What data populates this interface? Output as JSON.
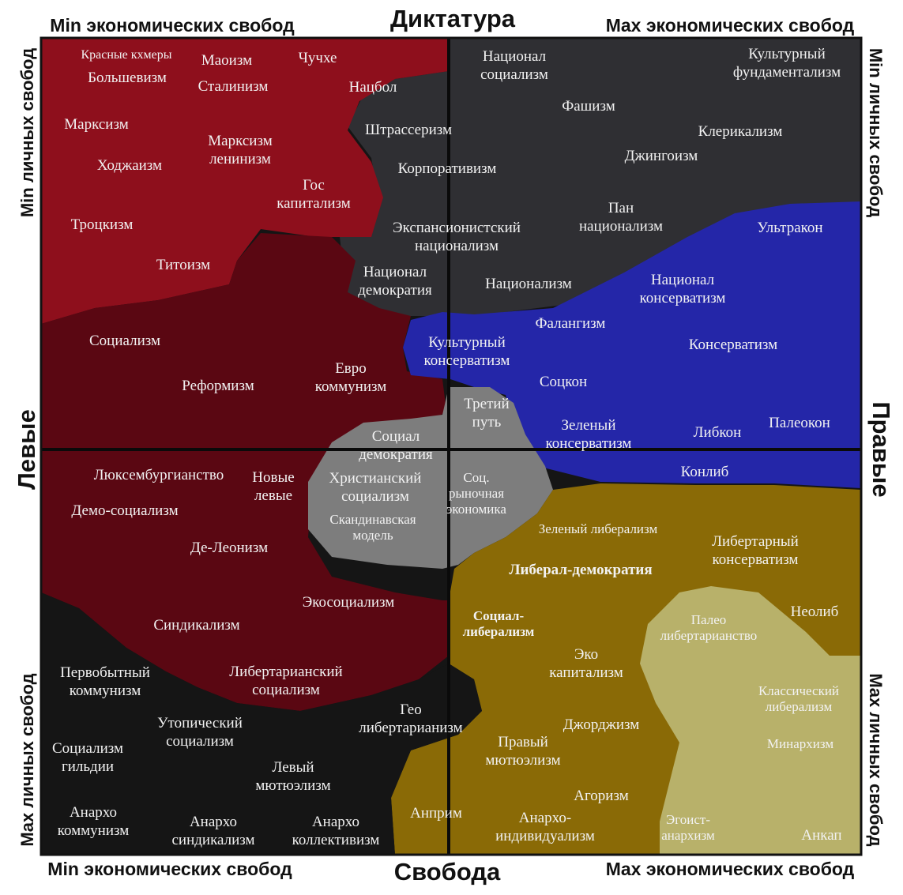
{
  "title_top": "Диктатура",
  "title_bottom": "Свобода",
  "side_left": "Левые",
  "side_right": "Правые",
  "corner_top_left": "Min экономических свобод",
  "corner_top_right": "Max экономических свобод",
  "corner_bottom_left": "Min экономических свобод",
  "corner_bottom_right": "Max экономических свобод",
  "vertical_left_top": "Min личных свобод",
  "vertical_left_bottom": "Max личных свобод",
  "vertical_right_top": "Min личных свобод",
  "vertical_right_bottom": "Max личных свобод",
  "colors": {
    "red": "#8e0f1c",
    "dark_red": "#5a0712",
    "charcoal": "#2f2f33",
    "blue": "#2426a8",
    "gray": "#7d7d7d",
    "olive": "#8a6a06",
    "khaki": "#b8b16a",
    "black": "#151515"
  },
  "ideologies": [
    {
      "id": "khmer-rouge",
      "region": "red",
      "lines": [
        "Красные кхмеры"
      ]
    },
    {
      "id": "maoism",
      "region": "red",
      "lines": [
        "Маоизм"
      ]
    },
    {
      "id": "juche",
      "region": "red",
      "lines": [
        "Чучхе"
      ]
    },
    {
      "id": "bolshevism",
      "region": "red",
      "lines": [
        "Большевизм"
      ]
    },
    {
      "id": "stalinism",
      "region": "red",
      "lines": [
        "Сталинизм"
      ]
    },
    {
      "id": "natsbol",
      "region": "red",
      "lines": [
        "Нацбол"
      ]
    },
    {
      "id": "marxism",
      "region": "red",
      "lines": [
        "Марксизм"
      ]
    },
    {
      "id": "marxism-leninism",
      "region": "red",
      "lines": [
        "Марксизм",
        "ленинизм"
      ]
    },
    {
      "id": "hoxhaism",
      "region": "red",
      "lines": [
        "Ходжаизм"
      ]
    },
    {
      "id": "state-capitalism",
      "region": "red",
      "lines": [
        "Гос",
        "капитализм"
      ]
    },
    {
      "id": "trotskyism",
      "region": "red",
      "lines": [
        "Троцкизм"
      ]
    },
    {
      "id": "titoism",
      "region": "red",
      "lines": [
        "Титоизм"
      ]
    },
    {
      "id": "national-socialism",
      "region": "charcoal",
      "lines": [
        "Национал",
        "социализм"
      ]
    },
    {
      "id": "cultural-fundamentalism",
      "region": "charcoal",
      "lines": [
        "Культурный",
        "фундаментализм"
      ]
    },
    {
      "id": "fascism",
      "region": "charcoal",
      "lines": [
        "Фашизм"
      ]
    },
    {
      "id": "strasserism",
      "region": "charcoal",
      "lines": [
        "Штрассеризм"
      ]
    },
    {
      "id": "clericalism",
      "region": "charcoal",
      "lines": [
        "Клерикализм"
      ]
    },
    {
      "id": "jingoism",
      "region": "charcoal",
      "lines": [
        "Джингоизм"
      ]
    },
    {
      "id": "corporatism",
      "region": "charcoal",
      "lines": [
        "Корпоративизм"
      ]
    },
    {
      "id": "pan-nationalism",
      "region": "charcoal",
      "lines": [
        "Пан",
        "национализм"
      ]
    },
    {
      "id": "expansionist-nationalism",
      "region": "charcoal",
      "lines": [
        "Экспансионистский",
        "национализм"
      ]
    },
    {
      "id": "ultracon",
      "region": "blue",
      "lines": [
        "Ультракон"
      ]
    },
    {
      "id": "national-democracy",
      "region": "charcoal",
      "lines": [
        "Национал",
        "демократия"
      ]
    },
    {
      "id": "nationalism",
      "region": "charcoal",
      "lines": [
        "Национализм"
      ]
    },
    {
      "id": "national-conservatism",
      "region": "blue",
      "lines": [
        "Национал",
        "консерватизм"
      ]
    },
    {
      "id": "falangism",
      "region": "blue",
      "lines": [
        "Фалангизм"
      ]
    },
    {
      "id": "socialism",
      "region": "dark_red",
      "lines": [
        "Социализм"
      ]
    },
    {
      "id": "cultural-conservatism",
      "region": "blue",
      "lines": [
        "Культурный",
        "консерватизм"
      ]
    },
    {
      "id": "conservatism",
      "region": "blue",
      "lines": [
        "Консерватизм"
      ]
    },
    {
      "id": "reformism",
      "region": "dark_red",
      "lines": [
        "Реформизм"
      ]
    },
    {
      "id": "eurocommunism",
      "region": "dark_red",
      "lines": [
        "Евро",
        "коммунизм"
      ]
    },
    {
      "id": "socon",
      "region": "blue",
      "lines": [
        "Соцкон"
      ]
    },
    {
      "id": "third-way",
      "region": "gray",
      "lines": [
        "Третий",
        "путь"
      ]
    },
    {
      "id": "green-conservatism",
      "region": "blue",
      "lines": [
        "Зеленый",
        "консерватизм"
      ]
    },
    {
      "id": "libcon",
      "region": "blue",
      "lines": [
        "Либкон"
      ]
    },
    {
      "id": "paleocon",
      "region": "blue",
      "lines": [
        "Палеокон"
      ]
    },
    {
      "id": "social-democracy",
      "region": "gray",
      "lines": [
        "Социал",
        "демократия"
      ]
    },
    {
      "id": "conlib",
      "region": "blue",
      "lines": [
        "Конлиб"
      ]
    },
    {
      "id": "luxemburgism",
      "region": "dark_red",
      "lines": [
        "Люксембургианство"
      ]
    },
    {
      "id": "new-left",
      "region": "dark_red",
      "lines": [
        "Новые",
        "левые"
      ]
    },
    {
      "id": "christian-socialism",
      "region": "gray",
      "lines": [
        "Христианский",
        "социализм"
      ]
    },
    {
      "id": "social-market-economy",
      "region": "gray",
      "lines": [
        "Соц.",
        "рыночная",
        "экономика"
      ]
    },
    {
      "id": "demo-socialism",
      "region": "dark_red",
      "lines": [
        "Демо-социализм"
      ]
    },
    {
      "id": "nordic-model",
      "region": "gray",
      "lines": [
        "Скандинавская",
        "модель"
      ]
    },
    {
      "id": "green-liberalism",
      "region": "olive",
      "lines": [
        "Зеленый либерализм"
      ]
    },
    {
      "id": "de-leonism",
      "region": "dark_red",
      "lines": [
        "Де-Леонизм"
      ]
    },
    {
      "id": "libertarian-conservatism",
      "region": "olive",
      "lines": [
        "Либертарный",
        "консерватизм"
      ]
    },
    {
      "id": "liberal-democracy",
      "region": "olive",
      "lines": [
        "Либерал-демократия"
      ]
    },
    {
      "id": "ecosocialism",
      "region": "dark_red",
      "lines": [
        "Экосоциализм"
      ]
    },
    {
      "id": "neolib",
      "region": "olive",
      "lines": [
        "Неолиб"
      ]
    },
    {
      "id": "social-liberalism",
      "region": "olive",
      "lines": [
        "Социал-",
        "либерализм"
      ]
    },
    {
      "id": "paleo-libertarianism",
      "region": "khaki",
      "lines": [
        "Палео",
        "либертарианство"
      ]
    },
    {
      "id": "syndicalism",
      "region": "dark_red",
      "lines": [
        "Синдикализм"
      ]
    },
    {
      "id": "eco-capitalism",
      "region": "olive",
      "lines": [
        "Эко",
        "капитализм"
      ]
    },
    {
      "id": "primitive-communism",
      "region": "black",
      "lines": [
        "Первобытный",
        "коммунизм"
      ]
    },
    {
      "id": "libertarian-socialism",
      "region": "dark_red",
      "lines": [
        "Либертарианский",
        "социализм"
      ]
    },
    {
      "id": "classical-liberalism",
      "region": "khaki",
      "lines": [
        "Классический",
        "либерализм"
      ]
    },
    {
      "id": "geolibertarianism",
      "region": "black",
      "lines": [
        "Гео",
        "либертарианизм"
      ]
    },
    {
      "id": "utopian-socialism",
      "region": "black",
      "lines": [
        "Утопический",
        "социализм"
      ]
    },
    {
      "id": "georgism",
      "region": "olive",
      "lines": [
        "Джорджизм"
      ]
    },
    {
      "id": "guild-socialism",
      "region": "black",
      "lines": [
        "Социализм",
        "гильдии"
      ]
    },
    {
      "id": "right-mutualism",
      "region": "olive",
      "lines": [
        "Правый",
        "мютюэлизм"
      ]
    },
    {
      "id": "minarchism",
      "region": "khaki",
      "lines": [
        "Минархизм"
      ]
    },
    {
      "id": "left-mutualism",
      "region": "black",
      "lines": [
        "Левый",
        "мютюэлизм"
      ]
    },
    {
      "id": "agorism",
      "region": "olive",
      "lines": [
        "Агоризм"
      ]
    },
    {
      "id": "anarcho-communism",
      "region": "black",
      "lines": [
        "Анархо",
        "коммунизм"
      ]
    },
    {
      "id": "anprim",
      "region": "olive",
      "lines": [
        "Анприм"
      ]
    },
    {
      "id": "anarcho-syndicalism",
      "region": "black",
      "lines": [
        "Анархо",
        "синдикализм"
      ]
    },
    {
      "id": "anarcho-collectivism",
      "region": "black",
      "lines": [
        "Анархо",
        "коллективизм"
      ]
    },
    {
      "id": "anarcho-individualism",
      "region": "olive",
      "lines": [
        "Анархо-",
        "индивидуализм"
      ]
    },
    {
      "id": "egoist-anarchism",
      "region": "khaki",
      "lines": [
        "Эгоист-",
        "анархизм"
      ]
    },
    {
      "id": "ancap",
      "region": "khaki",
      "lines": [
        "Анкап"
      ]
    }
  ]
}
